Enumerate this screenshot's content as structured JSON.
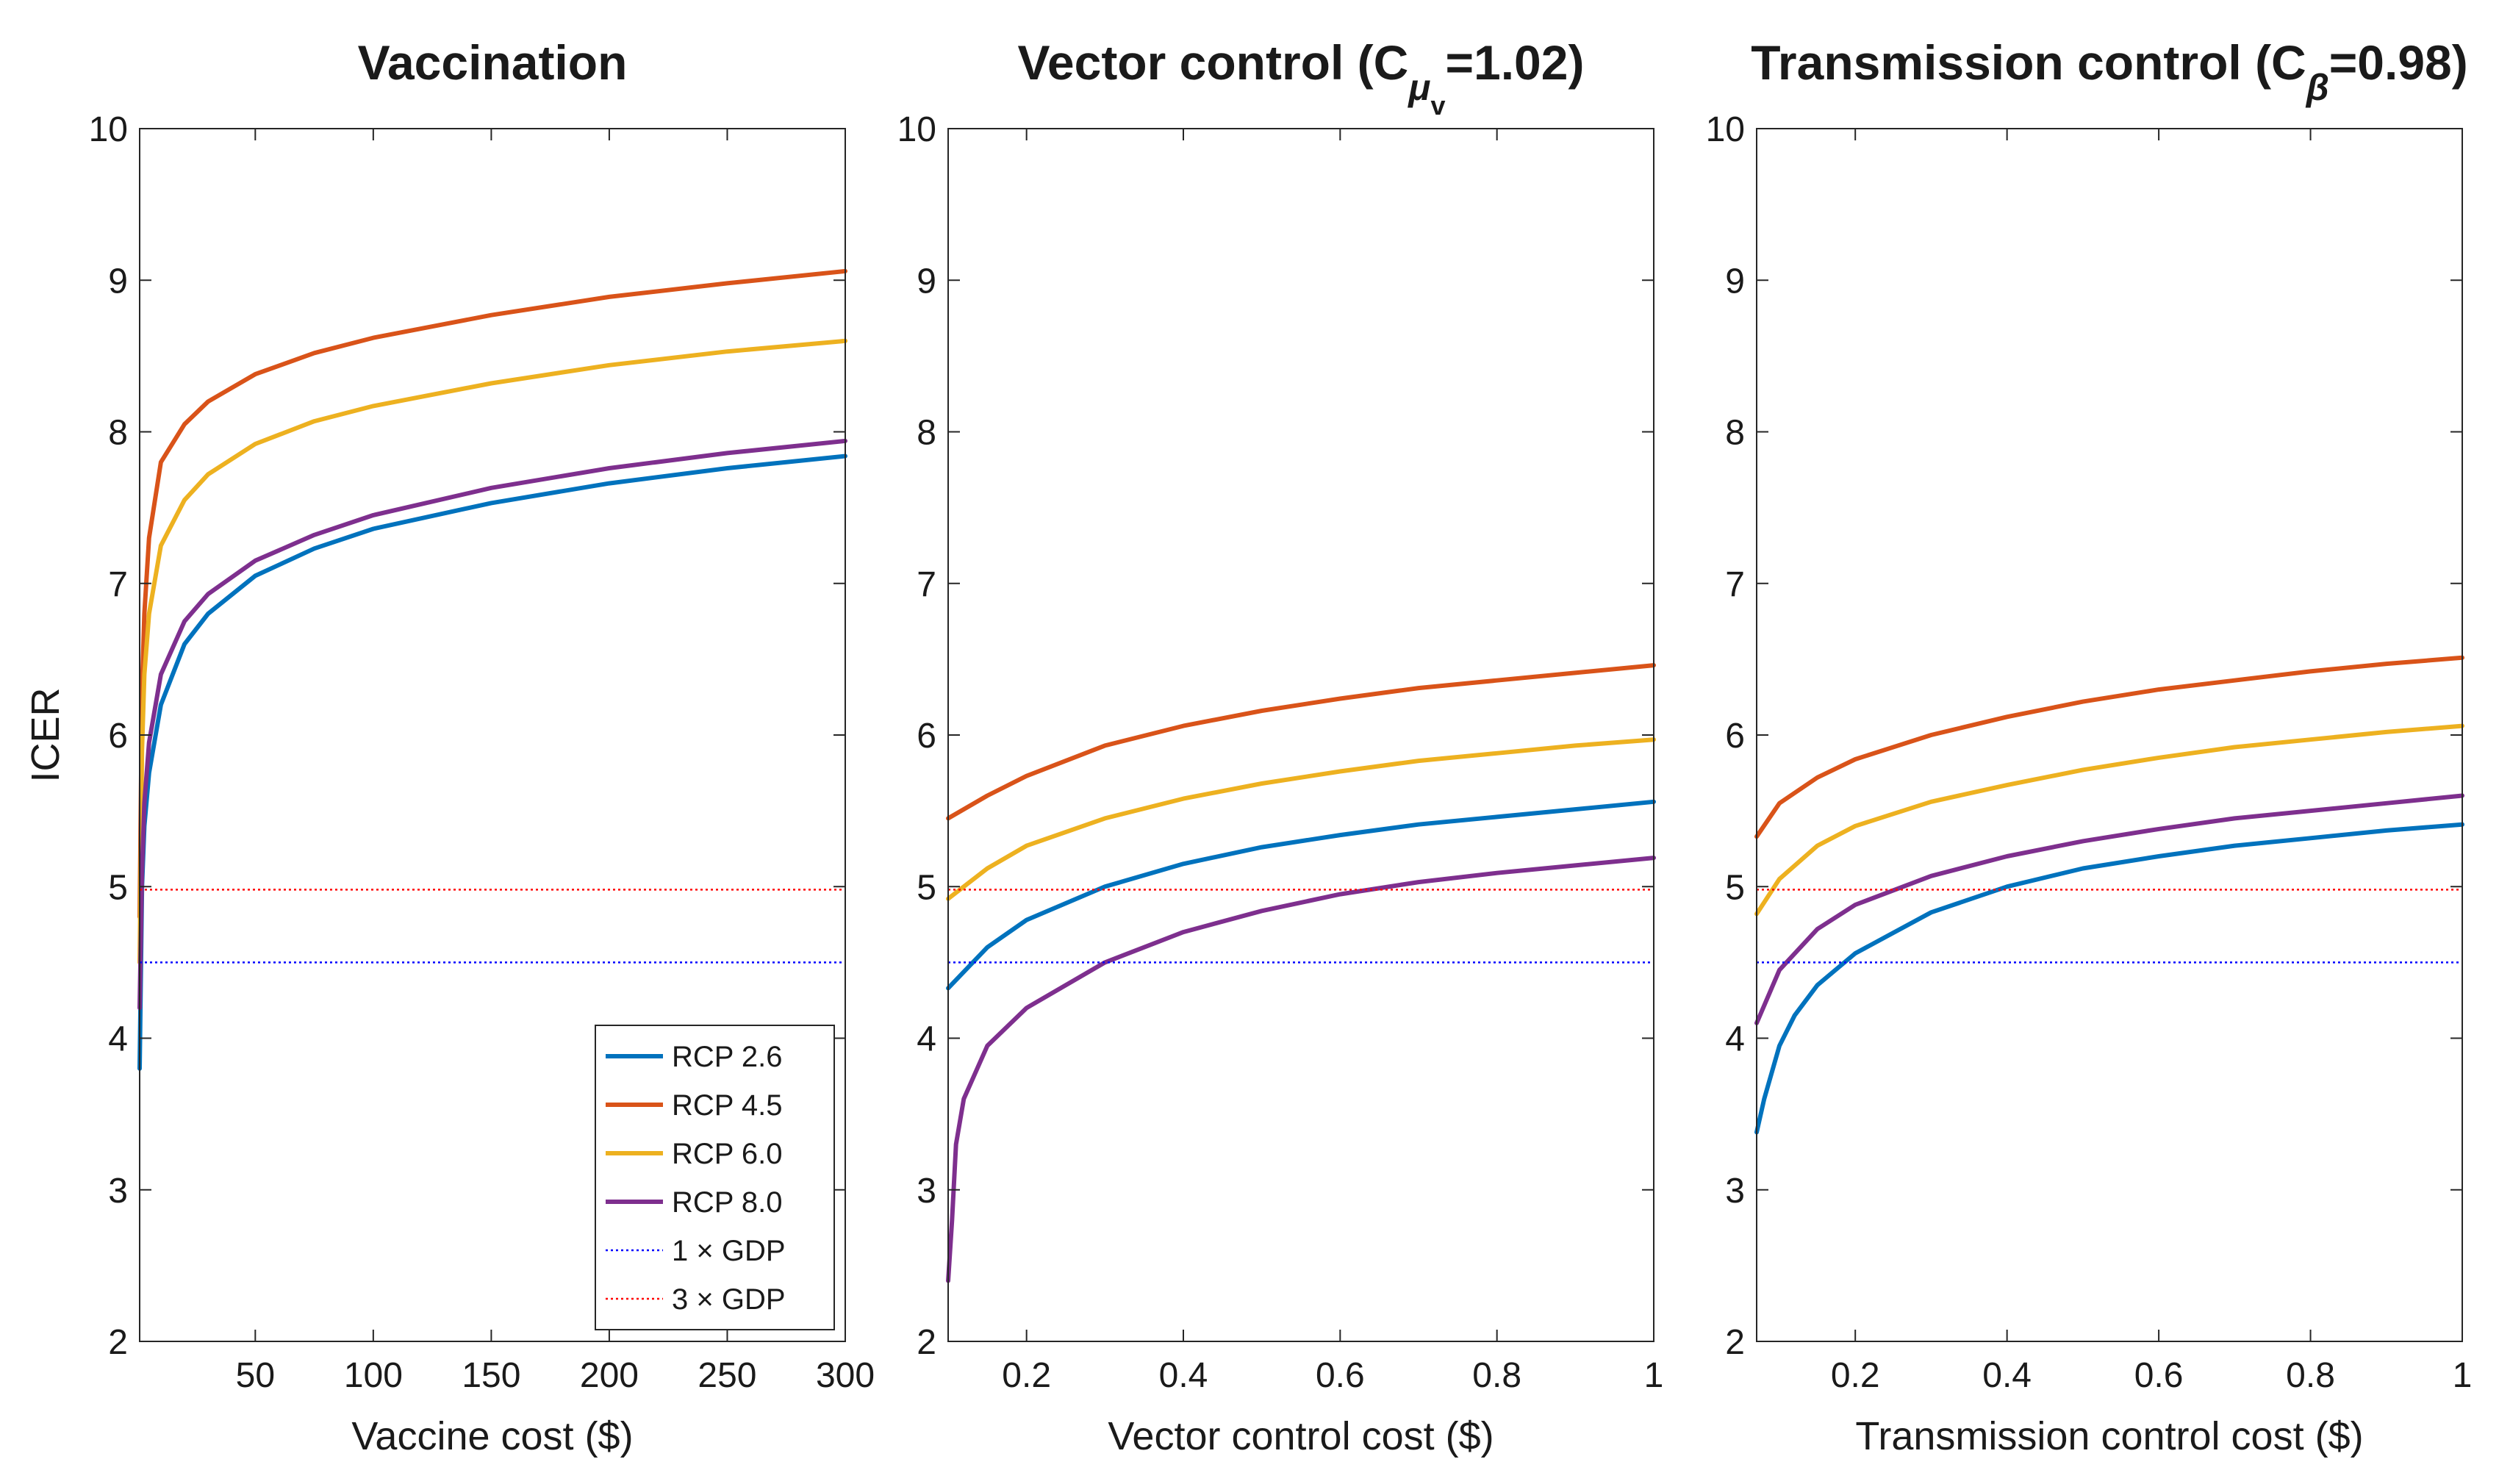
{
  "chart_data": [
    {
      "type": "line",
      "title": "Vaccination",
      "xlabel": "Vaccine cost ($)",
      "ylabel": "ICER",
      "xlim": [
        1,
        300
      ],
      "ylim": [
        2,
        10
      ],
      "xticks": [
        50,
        100,
        150,
        200,
        250,
        300
      ],
      "xtick_labels": [
        "50",
        "100",
        "150",
        "200",
        "250",
        "300"
      ],
      "yticks": [
        2,
        3,
        4,
        5,
        6,
        7,
        8,
        9,
        10
      ],
      "ytick_labels": [
        "2",
        "3",
        "4",
        "5",
        "6",
        "7",
        "8",
        "9",
        "10"
      ],
      "grid": false,
      "series": [
        {
          "name": "RCP 2.6",
          "color": "#0072BD",
          "x": [
            1,
            2,
            3,
            5,
            10,
            20,
            30,
            50,
            75,
            100,
            150,
            200,
            250,
            300
          ],
          "y": [
            3.8,
            5.0,
            5.4,
            5.75,
            6.2,
            6.6,
            6.8,
            7.05,
            7.23,
            7.36,
            7.53,
            7.66,
            7.76,
            7.84
          ]
        },
        {
          "name": "RCP 4.5",
          "color": "#D95319",
          "x": [
            1,
            2,
            3,
            5,
            10,
            20,
            30,
            50,
            75,
            100,
            150,
            200,
            250,
            300
          ],
          "y": [
            4.8,
            6.3,
            6.8,
            7.3,
            7.8,
            8.05,
            8.2,
            8.38,
            8.52,
            8.62,
            8.77,
            8.89,
            8.98,
            9.06
          ]
        },
        {
          "name": "RCP 6.0",
          "color": "#EDB120",
          "x": [
            1,
            2,
            3,
            5,
            10,
            20,
            30,
            50,
            75,
            100,
            150,
            200,
            250,
            300
          ],
          "y": [
            4.5,
            5.9,
            6.4,
            6.8,
            7.25,
            7.55,
            7.72,
            7.92,
            8.07,
            8.17,
            8.32,
            8.44,
            8.53,
            8.6
          ]
        },
        {
          "name": "RCP 8.0",
          "color": "#7E2F8E",
          "x": [
            1,
            2,
            3,
            5,
            10,
            20,
            30,
            50,
            75,
            100,
            150,
            200,
            250,
            300
          ],
          "y": [
            4.2,
            5.1,
            5.55,
            5.95,
            6.4,
            6.75,
            6.93,
            7.15,
            7.32,
            7.45,
            7.63,
            7.76,
            7.86,
            7.94
          ]
        },
        {
          "name": "1 × GDP",
          "color": "#0000FF",
          "dashed": true,
          "x": [
            1,
            300
          ],
          "y": [
            4.5,
            4.5
          ]
        },
        {
          "name": "3 × GDP",
          "color": "#FF0000",
          "dashed": true,
          "x": [
            1,
            300
          ],
          "y": [
            4.98,
            4.98
          ]
        }
      ],
      "legend": {
        "placement": "bottom-right",
        "entries": [
          "RCP 2.6",
          "RCP 4.5",
          "RCP 6.0",
          "RCP 8.0",
          "1 × GDP",
          "3 × GDP"
        ]
      }
    },
    {
      "type": "line",
      "title": "Vector control (C",
      "title_sub": "μ",
      "title_subsub": "v",
      "title_suffix": "=1.02)",
      "xlabel": "Vector control cost ($)",
      "ylabel": "",
      "xlim": [
        0.1,
        1
      ],
      "ylim": [
        2,
        10
      ],
      "xticks": [
        0.2,
        0.4,
        0.6,
        0.8,
        1
      ],
      "xtick_labels": [
        "0.2",
        "0.4",
        "0.6",
        "0.8",
        "1"
      ],
      "yticks": [
        2,
        3,
        4,
        5,
        6,
        7,
        8,
        9,
        10
      ],
      "ytick_labels": [
        "2",
        "3",
        "4",
        "5",
        "6",
        "7",
        "8",
        "9",
        "10"
      ],
      "grid": false,
      "series": [
        {
          "name": "RCP 2.6",
          "color": "#0072BD",
          "x": [
            0.1,
            0.15,
            0.2,
            0.3,
            0.4,
            0.5,
            0.6,
            0.7,
            0.8,
            0.9,
            1.0
          ],
          "y": [
            4.33,
            4.6,
            4.78,
            5.0,
            5.15,
            5.26,
            5.34,
            5.41,
            5.46,
            5.51,
            5.56
          ]
        },
        {
          "name": "RCP 4.5",
          "color": "#D95319",
          "x": [
            0.1,
            0.15,
            0.2,
            0.3,
            0.4,
            0.5,
            0.6,
            0.7,
            0.8,
            0.9,
            1.0
          ],
          "y": [
            5.45,
            5.6,
            5.73,
            5.93,
            6.06,
            6.16,
            6.24,
            6.31,
            6.36,
            6.41,
            6.46
          ]
        },
        {
          "name": "RCP 6.0",
          "color": "#EDB120",
          "x": [
            0.1,
            0.15,
            0.2,
            0.3,
            0.4,
            0.5,
            0.6,
            0.7,
            0.8,
            0.9,
            1.0
          ],
          "y": [
            4.92,
            5.12,
            5.27,
            5.45,
            5.58,
            5.68,
            5.76,
            5.83,
            5.88,
            5.93,
            5.97
          ]
        },
        {
          "name": "RCP 8.0",
          "color": "#7E2F8E",
          "x": [
            0.1,
            0.105,
            0.11,
            0.12,
            0.15,
            0.2,
            0.3,
            0.4,
            0.5,
            0.6,
            0.7,
            0.8,
            0.9,
            1.0
          ],
          "y": [
            2.4,
            2.8,
            3.3,
            3.6,
            3.95,
            4.2,
            4.5,
            4.7,
            4.84,
            4.95,
            5.03,
            5.09,
            5.14,
            5.19
          ]
        },
        {
          "name": "1 × GDP",
          "color": "#0000FF",
          "dashed": true,
          "x": [
            0.1,
            1
          ],
          "y": [
            4.5,
            4.5
          ]
        },
        {
          "name": "3 × GDP",
          "color": "#FF0000",
          "dashed": true,
          "x": [
            0.1,
            1
          ],
          "y": [
            4.98,
            4.98
          ]
        }
      ]
    },
    {
      "type": "line",
      "title": "Transmission control (C",
      "title_sub": "β",
      "title_subsub": "",
      "title_suffix": "=0.98)",
      "xlabel": "Transmission control cost ($)",
      "ylabel": "",
      "xlim": [
        0.07,
        1
      ],
      "ylim": [
        2,
        10
      ],
      "xticks": [
        0.2,
        0.4,
        0.6,
        0.8,
        1
      ],
      "xtick_labels": [
        "0.2",
        "0.4",
        "0.6",
        "0.8",
        "1"
      ],
      "yticks": [
        2,
        3,
        4,
        5,
        6,
        7,
        8,
        9,
        10
      ],
      "ytick_labels": [
        "2",
        "3",
        "4",
        "5",
        "6",
        "7",
        "8",
        "9",
        "10"
      ],
      "grid": false,
      "series": [
        {
          "name": "RCP 2.6",
          "color": "#0072BD",
          "x": [
            0.07,
            0.08,
            0.1,
            0.12,
            0.15,
            0.2,
            0.3,
            0.4,
            0.5,
            0.6,
            0.7,
            0.8,
            0.9,
            1.0
          ],
          "y": [
            3.38,
            3.6,
            3.95,
            4.15,
            4.35,
            4.56,
            4.83,
            5.0,
            5.12,
            5.2,
            5.27,
            5.32,
            5.37,
            5.41
          ]
        },
        {
          "name": "RCP 4.5",
          "color": "#D95319",
          "x": [
            0.07,
            0.1,
            0.15,
            0.2,
            0.3,
            0.4,
            0.5,
            0.6,
            0.7,
            0.8,
            0.9,
            1.0
          ],
          "y": [
            5.33,
            5.55,
            5.72,
            5.84,
            6.0,
            6.12,
            6.22,
            6.3,
            6.36,
            6.42,
            6.47,
            6.51
          ]
        },
        {
          "name": "RCP 6.0",
          "color": "#EDB120",
          "x": [
            0.07,
            0.1,
            0.15,
            0.2,
            0.3,
            0.4,
            0.5,
            0.6,
            0.7,
            0.8,
            0.9,
            1.0
          ],
          "y": [
            4.82,
            5.05,
            5.27,
            5.4,
            5.56,
            5.67,
            5.77,
            5.85,
            5.92,
            5.97,
            6.02,
            6.06
          ]
        },
        {
          "name": "RCP 8.0",
          "color": "#7E2F8E",
          "x": [
            0.07,
            0.1,
            0.15,
            0.2,
            0.3,
            0.4,
            0.5,
            0.6,
            0.7,
            0.8,
            0.9,
            1.0
          ],
          "y": [
            4.1,
            4.45,
            4.72,
            4.88,
            5.07,
            5.2,
            5.3,
            5.38,
            5.45,
            5.5,
            5.55,
            5.6
          ]
        },
        {
          "name": "1 × GDP",
          "color": "#0000FF",
          "dashed": true,
          "x": [
            0.07,
            1
          ],
          "y": [
            4.5,
            4.5
          ]
        },
        {
          "name": "3 × GDP",
          "color": "#FF0000",
          "dashed": true,
          "x": [
            0.07,
            1
          ],
          "y": [
            4.98,
            4.98
          ]
        }
      ]
    }
  ]
}
